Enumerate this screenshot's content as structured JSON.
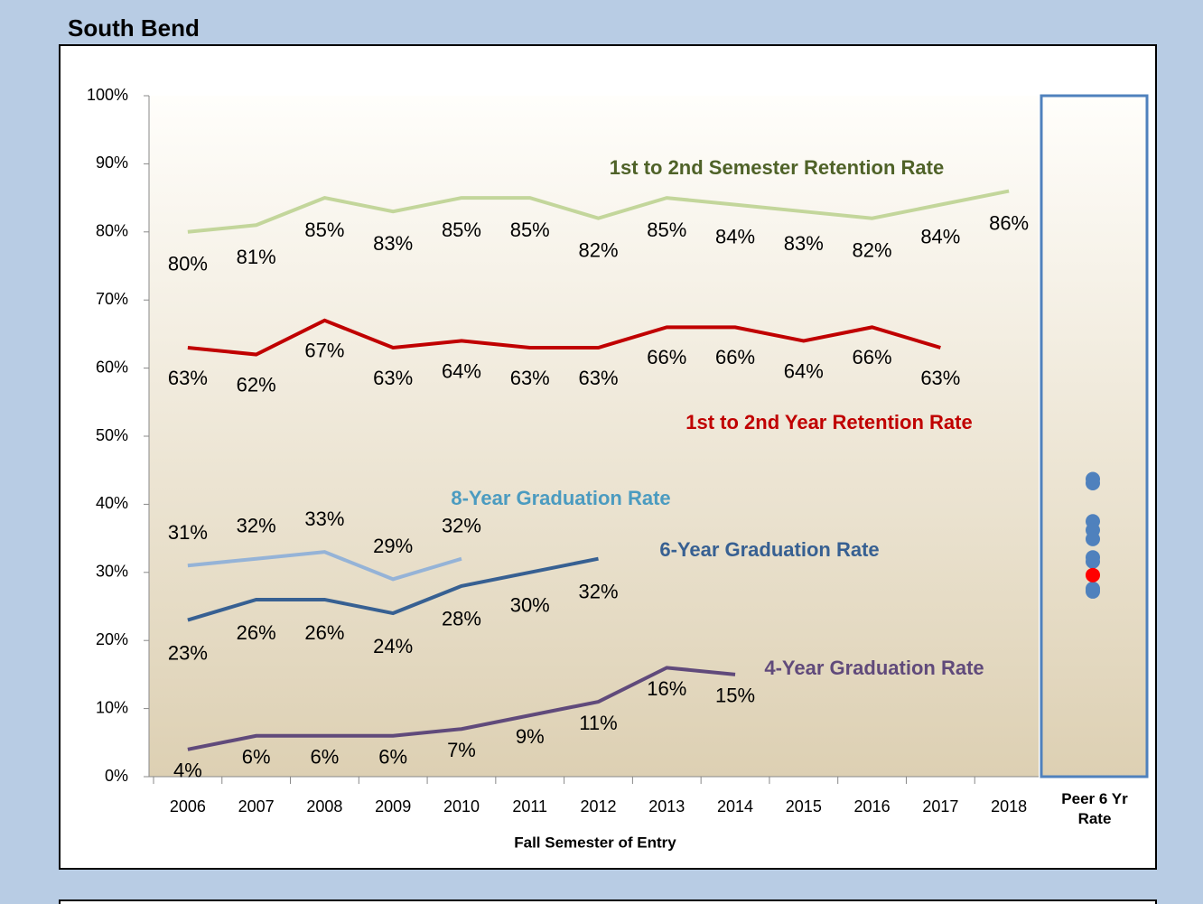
{
  "chart_data": {
    "type": "line",
    "title": "South Bend",
    "x_label": "Fall Semester of Entry",
    "categories": [
      "2006",
      "2007",
      "2008",
      "2009",
      "2010",
      "2011",
      "2012",
      "2013",
      "2014",
      "2015",
      "2016",
      "2017",
      "2018"
    ],
    "ylim": [
      0,
      100
    ],
    "yticks": [
      {
        "value": 0,
        "label": "0%"
      },
      {
        "value": 10,
        "label": "10%"
      },
      {
        "value": 20,
        "label": "20%"
      },
      {
        "value": 30,
        "label": "30%"
      },
      {
        "value": 40,
        "label": "40%"
      },
      {
        "value": 50,
        "label": "50%"
      },
      {
        "value": 60,
        "label": "60%"
      },
      {
        "value": 70,
        "label": "70%"
      },
      {
        "value": 80,
        "label": "80%"
      },
      {
        "value": 90,
        "label": "90%"
      },
      {
        "value": 100,
        "label": "100%"
      }
    ],
    "series": [
      {
        "name": "1st to 2nd Semester Retention Rate",
        "color": "#c3d69b",
        "label_color": "#4f6228",
        "values": [
          80,
          81,
          85,
          83,
          85,
          85,
          82,
          85,
          84,
          83,
          82,
          84,
          86
        ],
        "value_labels": [
          "80%",
          "81%",
          "85%",
          "83%",
          "85%",
          "85%",
          "82%",
          "85%",
          "84%",
          "83%",
          "82%",
          "84%",
          "86%"
        ]
      },
      {
        "name": "1st to 2nd Year Retention Rate",
        "color": "#c00000",
        "label_color": "#c00000",
        "values": [
          63,
          62,
          67,
          63,
          64,
          63,
          63,
          66,
          66,
          64,
          66,
          63,
          null
        ],
        "value_labels": [
          "63%",
          "62%",
          "67%",
          "63%",
          "64%",
          "63%",
          "63%",
          "66%",
          "66%",
          "64%",
          "66%",
          "63%",
          null
        ]
      },
      {
        "name": "8-Year Graduation Rate",
        "color": "#95b3d7",
        "label_color": "#4b9bc0",
        "values": [
          31,
          32,
          33,
          29,
          32,
          null,
          null,
          null,
          null,
          null,
          null,
          null,
          null
        ],
        "value_labels": [
          "31%",
          "32%",
          "33%",
          "29%",
          "32%",
          null,
          null,
          null,
          null,
          null,
          null,
          null,
          null
        ]
      },
      {
        "name": "6-Year Graduation Rate",
        "color": "#376092",
        "label_color": "#376092",
        "values": [
          23,
          26,
          26,
          24,
          28,
          30,
          32,
          null,
          null,
          null,
          null,
          null,
          null
        ],
        "value_labels": [
          "23%",
          "26%",
          "26%",
          "24%",
          "28%",
          "30%",
          "32%",
          null,
          null,
          null,
          null,
          null,
          null
        ]
      },
      {
        "name": "4-Year Graduation Rate",
        "color": "#604a7b",
        "label_color": "#604a7b",
        "values": [
          4,
          6,
          6,
          6,
          7,
          9,
          11,
          16,
          15,
          null,
          null,
          null,
          null
        ],
        "value_labels": [
          "4%",
          "6%",
          "6%",
          "6%",
          "7%",
          "9%",
          "11%",
          "16%",
          "15%",
          null,
          null,
          null,
          null
        ]
      }
    ],
    "peer": {
      "name": "Peer 6 Yr Rate",
      "color": "#4f81bd",
      "values": [
        43.7,
        43.1,
        37.5,
        36.2,
        34.9,
        32.2,
        31.6,
        27.6,
        27.2
      ],
      "highlight_color": "#ff0000",
      "highlight_value": 29.6
    }
  }
}
